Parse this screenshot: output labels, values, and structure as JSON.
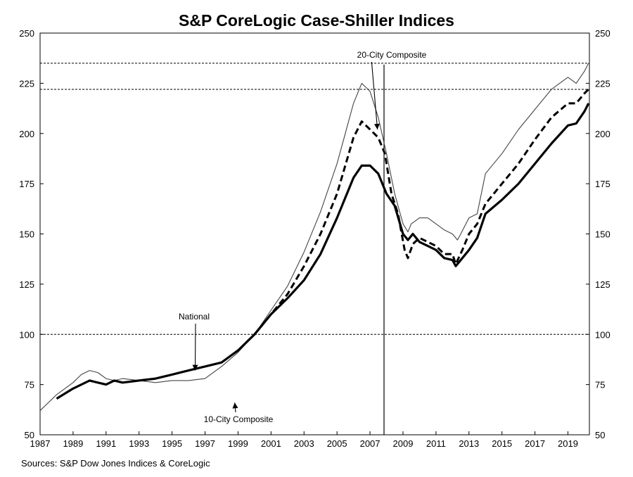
{
  "chart_data": {
    "type": "line",
    "title": "S&P CoreLogic Case-Shiller Indices",
    "source": "Sources:  S&P Dow Jones Indices & CoreLogic",
    "xlim": [
      1987,
      2020.3
    ],
    "ylim": [
      50,
      250
    ],
    "x_ticks": [
      "1987",
      "1989",
      "1991",
      "1993",
      "1995",
      "1997",
      "1999",
      "2001",
      "2003",
      "2005",
      "2007",
      "2009",
      "2011",
      "2013",
      "2015",
      "2017",
      "2019"
    ],
    "y_ticks": [
      "50",
      "75",
      "100",
      "125",
      "150",
      "175",
      "200",
      "225",
      "250"
    ],
    "reference_lines": [
      100,
      222,
      235
    ],
    "vertical_marker_x": 2007.85,
    "annotations": [
      {
        "text": "20-City Composite",
        "pointer_x": 2007.45,
        "pointer_y": 202
      },
      {
        "text": "National",
        "pointer_x": 1996.4,
        "pointer_y": 82
      },
      {
        "text": "10-City Composite",
        "pointer_x": 1998.8,
        "pointer_y": 66
      }
    ],
    "series": [
      {
        "name": "10-City Composite",
        "style": "thin",
        "x": [
          1987,
          1988,
          1989,
          1989.5,
          1990,
          1990.5,
          1991,
          1991.5,
          1992,
          1993,
          1994,
          1995,
          1996,
          1997,
          1998,
          1999,
          2000,
          2001,
          2002,
          2003,
          2004,
          2005,
          2005.5,
          2006,
          2006.5,
          2007,
          2007.5,
          2008,
          2008.5,
          2009,
          2009.3,
          2009.5,
          2010,
          2010.5,
          2011,
          2011.5,
          2012,
          2012.3,
          2012.5,
          2013,
          2013.5,
          2014,
          2015,
          2016,
          2017,
          2018,
          2019,
          2019.5,
          2020,
          2020.25
        ],
        "values": [
          62,
          70,
          76,
          80,
          82,
          81,
          78,
          77,
          78,
          77,
          76,
          77,
          77,
          78,
          84,
          91,
          100,
          112,
          124,
          141,
          161,
          185,
          200,
          215,
          225,
          221,
          208,
          190,
          170,
          155,
          151,
          155,
          158,
          158,
          155,
          152,
          150,
          147,
          150,
          158,
          160,
          180,
          190,
          202,
          212,
          222,
          228,
          225,
          231,
          235
        ]
      },
      {
        "name": "20-City Composite",
        "style": "dashed",
        "x": [
          2000,
          2001,
          2002,
          2003,
          2004,
          2005,
          2005.5,
          2006,
          2006.5,
          2007,
          2007.5,
          2007.9,
          2008.3,
          2008.7,
          2009.1,
          2009.3,
          2009.6,
          2010,
          2010.5,
          2011,
          2011.5,
          2012,
          2012.2,
          2012.6,
          2013,
          2013.5,
          2014,
          2015,
          2016,
          2017,
          2018,
          2019,
          2019.5,
          2020,
          2020.25
        ],
        "values": [
          100,
          110,
          120,
          134,
          150,
          170,
          184,
          198,
          206,
          202,
          198,
          190,
          170,
          160,
          142,
          138,
          145,
          148,
          146,
          144,
          140,
          140,
          135,
          142,
          150,
          155,
          165,
          175,
          185,
          197,
          208,
          215,
          215,
          220,
          222
        ]
      },
      {
        "name": "National",
        "style": "thick",
        "x": [
          1988,
          1989,
          1990,
          1990.5,
          1991,
          1991.5,
          1992,
          1993,
          1994,
          1995,
          1996,
          1997,
          1998,
          1999,
          2000,
          2001,
          2002,
          2003,
          2004,
          2005,
          2005.5,
          2006,
          2006.5,
          2007,
          2007.5,
          2008,
          2008.5,
          2009,
          2009.3,
          2009.6,
          2010,
          2010.5,
          2011,
          2011.5,
          2012,
          2012.2,
          2012.6,
          2013,
          2013.5,
          2014,
          2015,
          2016,
          2017,
          2018,
          2019,
          2019.5,
          2020,
          2020.25
        ],
        "values": [
          68,
          73,
          77,
          76,
          75,
          77,
          76,
          77,
          78,
          80,
          82,
          84,
          86,
          92,
          100,
          110,
          118,
          127,
          140,
          158,
          168,
          178,
          184,
          184,
          180,
          170,
          164,
          150,
          147,
          150,
          146,
          144,
          142,
          138,
          137,
          134,
          138,
          142,
          148,
          160,
          167,
          175,
          185,
          195,
          204,
          205,
          211,
          215
        ]
      }
    ]
  }
}
